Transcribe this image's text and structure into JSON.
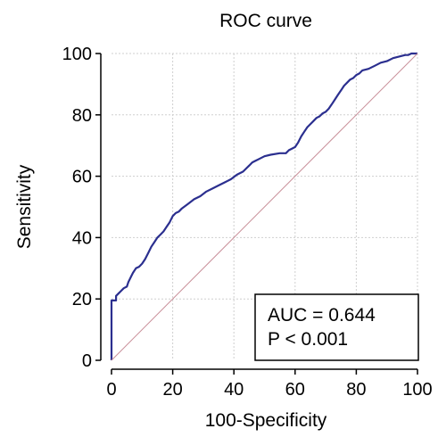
{
  "chart_data": {
    "type": "line",
    "title": "ROC curve",
    "xlabel": "100-Specificity",
    "ylabel": "Sensitivity",
    "xlim": [
      0,
      100
    ],
    "ylim": [
      0,
      100
    ],
    "xticks": [
      0,
      20,
      40,
      60,
      80,
      100
    ],
    "yticks": [
      0,
      20,
      40,
      60,
      80,
      100
    ],
    "grid": true,
    "series": [
      {
        "role": "roc-curve",
        "color": "#2b2f8f",
        "x": [
          0,
          0,
          0,
          1.5,
          1.5,
          2.5,
          3,
          4,
          5,
          5.5,
          6.5,
          7,
          8,
          9,
          10,
          11,
          12,
          13,
          14,
          15,
          16,
          17,
          18,
          19,
          20,
          21,
          22,
          23,
          25,
          27,
          29,
          31,
          33,
          35,
          37,
          39,
          41,
          43,
          44,
          45,
          46,
          47,
          48,
          50,
          52,
          55,
          57,
          58,
          59,
          60,
          61,
          62,
          63,
          64,
          65,
          66,
          67,
          68,
          69,
          70,
          71,
          72,
          73,
          74,
          75,
          76,
          77,
          78,
          79,
          80,
          81,
          82,
          84,
          86,
          88,
          90,
          92,
          94,
          96,
          97,
          98,
          99,
          100
        ],
        "y": [
          0,
          19.5,
          19.5,
          19.5,
          21,
          22,
          22.5,
          23.5,
          24,
          25.5,
          27.5,
          28.5,
          30,
          30.5,
          31.5,
          33,
          35,
          37,
          38.5,
          40,
          41,
          42,
          43.5,
          45,
          47,
          48,
          48.5,
          49.5,
          51,
          52.5,
          53.5,
          55,
          56,
          57,
          58,
          59,
          60.5,
          61.5,
          62.5,
          63.5,
          64.5,
          65,
          65.5,
          66.5,
          67,
          67.5,
          67.5,
          68.5,
          69,
          69.5,
          71,
          73,
          74.5,
          76,
          77,
          78,
          79,
          79.5,
          80.5,
          81,
          82,
          83.5,
          85,
          86.5,
          88,
          89.5,
          90.5,
          91.5,
          92,
          93,
          93.5,
          94.5,
          95,
          96,
          97,
          97.5,
          98.5,
          99,
          99.5,
          99.5,
          100,
          100,
          100
        ]
      },
      {
        "role": "reference-line",
        "color": "#c9909a",
        "x": [
          0,
          100
        ],
        "y": [
          0,
          100
        ]
      }
    ],
    "annotation": {
      "lines": [
        "AUC = 0.644",
        "P < 0.001"
      ],
      "position": "bottom-right"
    }
  }
}
